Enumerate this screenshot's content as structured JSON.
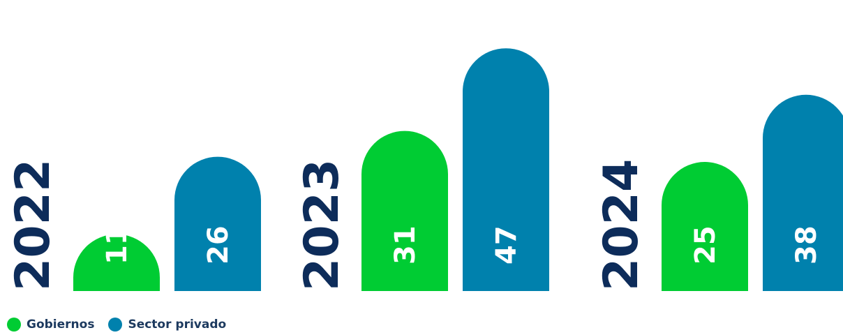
{
  "chart_data": {
    "type": "bar",
    "categories": [
      "2022",
      "2023",
      "2024"
    ],
    "series": [
      {
        "name": "Gobiernos",
        "color": "#00cc33",
        "values": [
          11,
          31,
          25
        ]
      },
      {
        "name": "Sector privado",
        "color": "#0081ad",
        "values": [
          26,
          47,
          38
        ]
      }
    ],
    "ylim": [
      0,
      47
    ],
    "year_label_color": "#0d2c5a",
    "value_label_color": "#ffffff"
  }
}
